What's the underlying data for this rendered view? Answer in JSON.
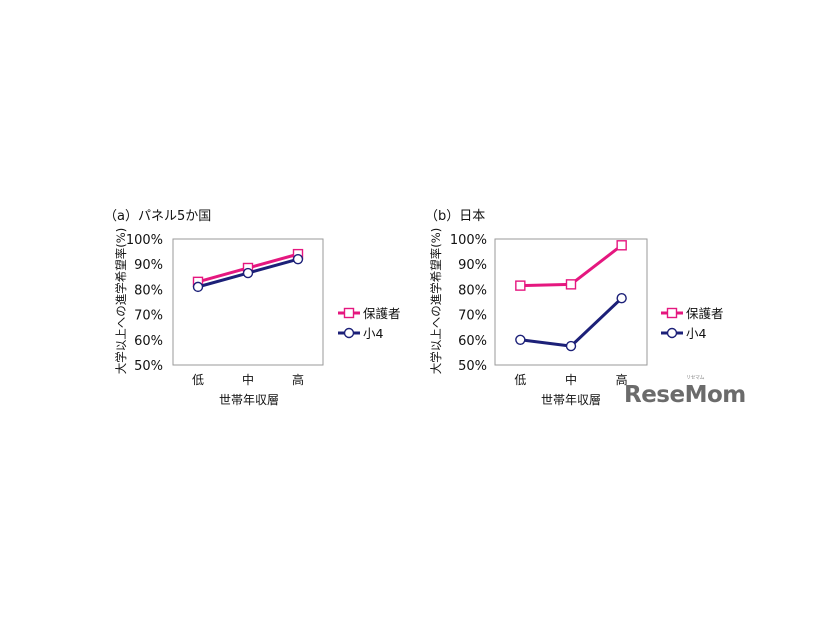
{
  "colors": {
    "parent": "#e5177f",
    "child": "#1c2078",
    "frame": "#9a9a9a",
    "text": "#111111"
  },
  "watermark": {
    "text": "ReseMom",
    "sup": "リセマム"
  },
  "chart_data": [
    {
      "type": "line",
      "title": "（a）パネル5か国",
      "ylabel": "大学以上への進学希望率(%)",
      "xlabel": "世帯年収層",
      "categories": [
        "低",
        "中",
        "高"
      ],
      "ylim": [
        50,
        100
      ],
      "yticks": [
        "100%",
        "90%",
        "80%",
        "70%",
        "60%",
        "50%"
      ],
      "series": [
        {
          "name": "保護者",
          "marker": "square",
          "values": [
            83,
            88.5,
            94
          ]
        },
        {
          "name": "小4",
          "marker": "circle",
          "values": [
            81,
            86.5,
            92
          ]
        }
      ]
    },
    {
      "type": "line",
      "title": "（b）日本",
      "ylabel": "大学以上への進学希望率(%)",
      "xlabel": "世帯年収層",
      "categories": [
        "低",
        "中",
        "高"
      ],
      "ylim": [
        50,
        100
      ],
      "yticks": [
        "100%",
        "90%",
        "80%",
        "70%",
        "60%",
        "50%"
      ],
      "series": [
        {
          "name": "保護者",
          "marker": "square",
          "values": [
            81.5,
            82,
            97.5
          ]
        },
        {
          "name": "小4",
          "marker": "circle",
          "values": [
            60,
            57.5,
            76.5
          ]
        }
      ]
    }
  ]
}
